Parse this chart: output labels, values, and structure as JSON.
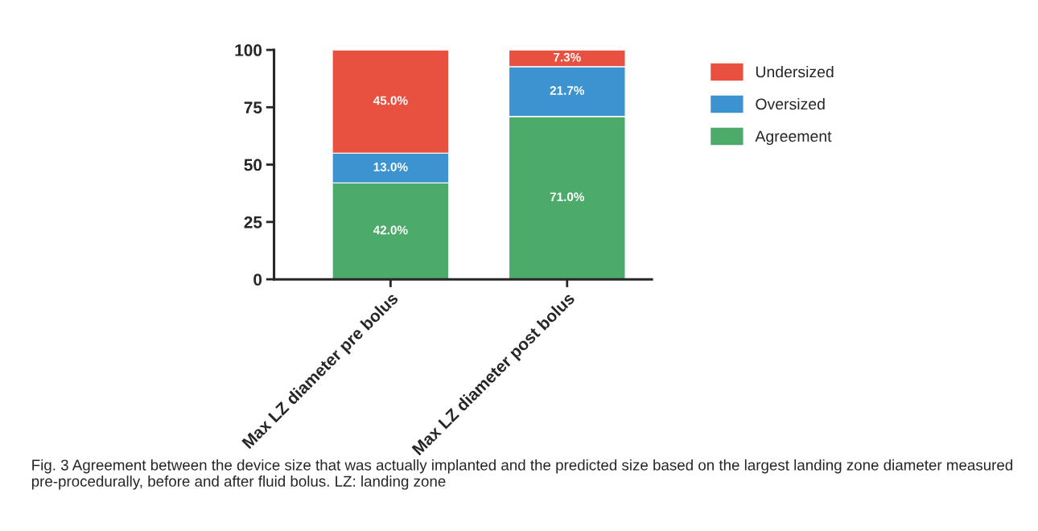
{
  "chart_data": {
    "type": "bar",
    "stacked": true,
    "categories": [
      "Max LZ diameter pre bolus",
      "Max LZ diameter post bolus"
    ],
    "series": [
      {
        "name": "Agreement",
        "color": "#4caa6a",
        "values": [
          42.0,
          71.0
        ],
        "value_labels": [
          "42.0%",
          "71.0%"
        ]
      },
      {
        "name": "Oversized",
        "color": "#3d92d0",
        "values": [
          13.0,
          21.7
        ],
        "value_labels": [
          "13.0%",
          "21.7%"
        ]
      },
      {
        "name": "Undersized",
        "color": "#e8513f",
        "values": [
          45.0,
          7.3
        ],
        "value_labels": [
          "45.0%",
          "7.3%"
        ]
      }
    ],
    "ylim": [
      0,
      100
    ],
    "yticks": [
      0,
      25,
      50,
      75,
      100
    ],
    "grid": false,
    "legend": "top right",
    "annotations": [
      "Fig. 3 Agreement between the device size that was actually implanted and the predicted size based on the largest landing zone diameter measured pre-procedurally, before and after fluid bolus. LZ: landing zone"
    ]
  }
}
